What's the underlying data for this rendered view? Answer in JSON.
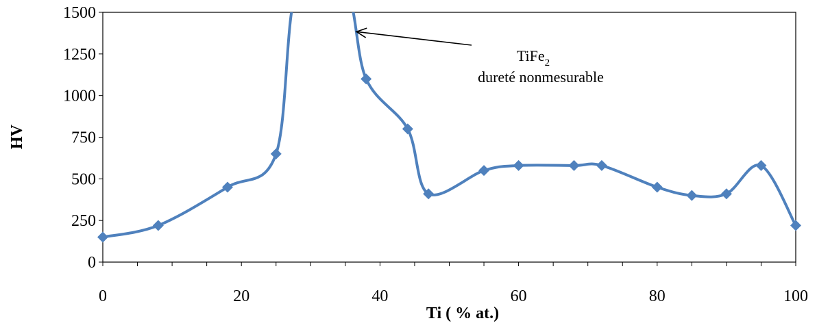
{
  "chart_data": {
    "type": "line",
    "xlabel": "Ti ( % at.)",
    "ylabel": "HV",
    "xlim": [
      0,
      100
    ],
    "ylim": [
      0,
      1500
    ],
    "x_ticks": [
      "0",
      "20",
      "40",
      "60",
      "80",
      "100"
    ],
    "y_ticks": [
      "0",
      "250",
      "500",
      "750",
      "1000",
      "1250",
      "1500"
    ],
    "grid": false,
    "smooth": true,
    "series": [
      {
        "color": "#4F81BD",
        "marker": "diamond",
        "points": [
          {
            "x": 0,
            "y": 150
          },
          {
            "x": 8,
            "y": 220
          },
          {
            "x": 18,
            "y": 450
          },
          {
            "x": 25,
            "y": 650
          },
          {
            "x": 38,
            "y": 1100
          },
          {
            "x": 44,
            "y": 800
          },
          {
            "x": 47,
            "y": 410
          },
          {
            "x": 55,
            "y": 550
          },
          {
            "x": 60,
            "y": 580
          },
          {
            "x": 68,
            "y": 580
          },
          {
            "x": 72,
            "y": 580
          },
          {
            "x": 80,
            "y": 450
          },
          {
            "x": 85,
            "y": 400
          },
          {
            "x": 90,
            "y": 410
          },
          {
            "x": 95,
            "y": 580
          },
          {
            "x": 100,
            "y": 220
          }
        ],
        "unmeasurable_peak_x": [
          28,
          35
        ]
      }
    ],
    "annotation": {
      "line1_base": "TiFe",
      "line1_sub": "2",
      "line2": "dureté nonmesurable",
      "arrow_target_x": 37,
      "arrow_target_y": 1400
    }
  }
}
